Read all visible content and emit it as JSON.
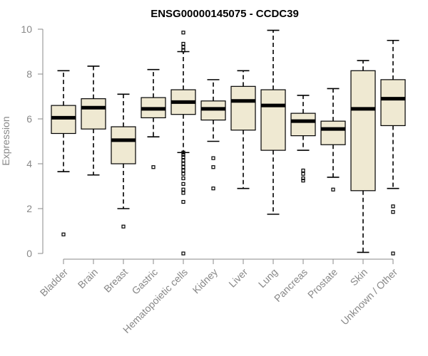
{
  "chart_data": {
    "type": "boxplot",
    "title": "ENSG00000145075 - CCDC39",
    "xlabel": "",
    "ylabel": "Expression",
    "ylim": [
      0,
      10
    ],
    "yticks": [
      0,
      2,
      4,
      6,
      8,
      10
    ],
    "box_fill": "#efe9d2",
    "categories": [
      "Bladder",
      "Brain",
      "Breast",
      "Gastric",
      "Hematopoietic cells",
      "Kidney",
      "Liver",
      "Lung",
      "Pancreas",
      "Prostate",
      "Skin",
      "Unknown / Other"
    ],
    "boxes": [
      {
        "name": "Bladder",
        "whislo": 3.65,
        "q1": 5.35,
        "med": 6.05,
        "q3": 6.6,
        "whishi": 8.15,
        "fliers": [
          0.85
        ]
      },
      {
        "name": "Brain",
        "whislo": 3.5,
        "q1": 5.55,
        "med": 6.5,
        "q3": 6.9,
        "whishi": 8.35,
        "fliers": []
      },
      {
        "name": "Breast",
        "whislo": 2.0,
        "q1": 4.0,
        "med": 5.05,
        "q3": 5.65,
        "whishi": 7.1,
        "fliers": [
          1.2
        ]
      },
      {
        "name": "Gastric",
        "whislo": 5.2,
        "q1": 6.05,
        "med": 6.45,
        "q3": 6.95,
        "whishi": 8.2,
        "fliers": [
          3.85
        ]
      },
      {
        "name": "Hematopoietic cells",
        "whislo": 4.5,
        "q1": 6.2,
        "med": 6.75,
        "q3": 7.3,
        "whishi": 9.0,
        "fliers": [
          9.85,
          9.35,
          9.2,
          9.05,
          4.5,
          4.4,
          4.3,
          4.15,
          4.0,
          3.85,
          3.7,
          3.55,
          3.35,
          3.1,
          2.85,
          2.7,
          2.3,
          0.0
        ]
      },
      {
        "name": "Kidney",
        "whislo": 5.0,
        "q1": 5.95,
        "med": 6.45,
        "q3": 6.8,
        "whishi": 7.75,
        "fliers": [
          4.25,
          3.85,
          2.9
        ]
      },
      {
        "name": "Liver",
        "whislo": 2.9,
        "q1": 5.5,
        "med": 6.8,
        "q3": 7.45,
        "whishi": 8.15,
        "fliers": []
      },
      {
        "name": "Lung",
        "whislo": 1.75,
        "q1": 4.6,
        "med": 6.6,
        "q3": 7.3,
        "whishi": 9.95,
        "fliers": []
      },
      {
        "name": "Pancreas",
        "whislo": 4.6,
        "q1": 5.25,
        "med": 5.9,
        "q3": 6.25,
        "whishi": 7.05,
        "fliers": [
          3.7,
          3.55,
          3.35,
          3.25
        ]
      },
      {
        "name": "Prostate",
        "whislo": 3.4,
        "q1": 4.85,
        "med": 5.55,
        "q3": 5.9,
        "whishi": 7.35,
        "fliers": [
          2.85
        ]
      },
      {
        "name": "Skin",
        "whislo": 0.05,
        "q1": 2.8,
        "med": 6.45,
        "q3": 8.15,
        "whishi": 8.6,
        "fliers": []
      },
      {
        "name": "Unknown / Other",
        "whislo": 2.9,
        "q1": 5.7,
        "med": 6.9,
        "q3": 7.75,
        "whishi": 9.5,
        "fliers": [
          2.1,
          1.85,
          0.0
        ]
      }
    ]
  }
}
